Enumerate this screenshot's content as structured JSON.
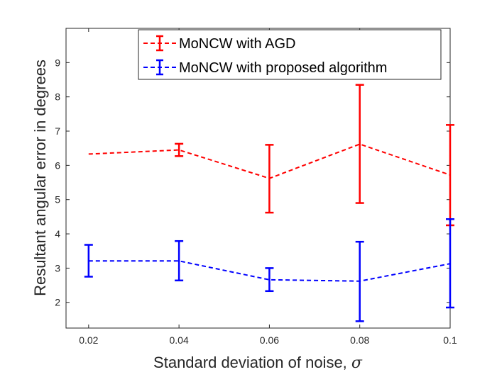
{
  "chart_data": {
    "type": "line",
    "title": "",
    "xlabel": "Standard deviation of noise, ",
    "xlabel_symbol": "σ",
    "ylabel": "Resultant angular error in degrees",
    "xlim": [
      0.015,
      0.1
    ],
    "ylim": [
      1.25,
      10
    ],
    "grid": false,
    "legend_position": "top-right",
    "x_ticks": [
      0.02,
      0.04,
      0.06,
      0.08,
      0.1
    ],
    "x_tick_labels": [
      "0.02",
      "0.04",
      "0.06",
      "0.08",
      "0.1"
    ],
    "y_ticks": [
      2,
      3,
      4,
      5,
      6,
      7,
      8,
      9
    ],
    "y_tick_labels": [
      "2",
      "3",
      "4",
      "5",
      "6",
      "7",
      "8",
      "9"
    ],
    "x": [
      0.02,
      0.04,
      0.06,
      0.08,
      0.1
    ],
    "series": [
      {
        "name": "MoNCW with AGD",
        "color": "#ff0000",
        "line_style": "dashed",
        "values": [
          6.33,
          6.45,
          5.62,
          6.62,
          5.72
        ],
        "lower": [
          6.33,
          6.27,
          4.62,
          4.9,
          4.25
        ],
        "upper": [
          6.33,
          6.63,
          6.6,
          8.35,
          7.18
        ]
      },
      {
        "name": "MoNCW with proposed algorithm",
        "color": "#0000ff",
        "line_style": "dashed",
        "values": [
          3.21,
          3.21,
          2.66,
          2.62,
          3.13
        ],
        "lower": [
          2.75,
          2.64,
          2.33,
          1.45,
          1.85
        ],
        "upper": [
          3.68,
          3.79,
          3.0,
          3.77,
          4.43
        ]
      }
    ]
  }
}
